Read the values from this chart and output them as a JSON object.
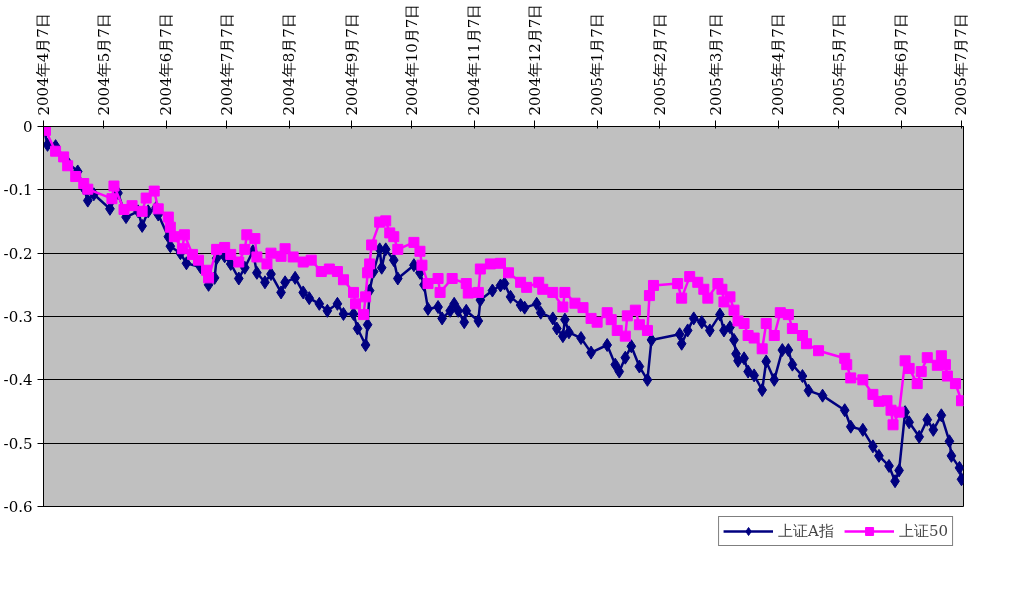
{
  "chart_data": {
    "type": "line",
    "xlim": [
      "2004-04-07",
      "2005-07-08"
    ],
    "ylim": [
      -0.6,
      0
    ],
    "xticks": [
      {
        "value": "2004-04-07",
        "label": "2004年4月7日"
      },
      {
        "value": "2004-05-07",
        "label": "2004年5月7日"
      },
      {
        "value": "2004-06-07",
        "label": "2004年6月7日"
      },
      {
        "value": "2004-07-07",
        "label": "2004年7月7日"
      },
      {
        "value": "2004-08-07",
        "label": "2004年8月7日"
      },
      {
        "value": "2004-09-07",
        "label": "2004年9月7日"
      },
      {
        "value": "2004-10-07",
        "label": "2004年10月7日"
      },
      {
        "value": "2004-11-07",
        "label": "2004年11月7日"
      },
      {
        "value": "2004-12-07",
        "label": "2004年12月7日"
      },
      {
        "value": "2005-01-07",
        "label": "2005年1月7日"
      },
      {
        "value": "2005-02-07",
        "label": "2005年2月7日"
      },
      {
        "value": "2005-03-07",
        "label": "2005年3月7日"
      },
      {
        "value": "2005-04-07",
        "label": "2005年4月7日"
      },
      {
        "value": "2005-05-07",
        "label": "2005年5月7日"
      },
      {
        "value": "2005-06-07",
        "label": "2005年6月7日"
      },
      {
        "value": "2005-07-07",
        "label": "2005年7月7日"
      }
    ],
    "yticks": [
      0,
      -0.1,
      -0.2,
      -0.3,
      -0.4,
      -0.5,
      -0.6
    ],
    "grid": "y",
    "legend": "bottom",
    "line_style": "solid",
    "series": [
      {
        "name": "上证A指",
        "color": "#000080",
        "marker": "diamond",
        "x": [
          "2004-04-07",
          "2004-04-09",
          "2004-04-13",
          "2004-04-19",
          "2004-04-24",
          "2004-04-27",
          "2004-04-29",
          "2004-05-02",
          "2004-05-10",
          "2004-05-14",
          "2004-05-18",
          "2004-05-24",
          "2004-05-26",
          "2004-05-29",
          "2004-06-02",
          "2004-06-03",
          "2004-06-08",
          "2004-06-09",
          "2004-06-14",
          "2004-06-17",
          "2004-06-24",
          "2004-06-28",
          "2004-07-01",
          "2004-07-02",
          "2004-07-06",
          "2004-07-09",
          "2004-07-13",
          "2004-07-16",
          "2004-07-20",
          "2004-07-22",
          "2004-07-26",
          "2004-07-29",
          "2004-08-03",
          "2004-08-05",
          "2004-08-10",
          "2004-08-14",
          "2004-08-17",
          "2004-08-22",
          "2004-08-26",
          "2004-08-31",
          "2004-09-03",
          "2004-09-08",
          "2004-09-10",
          "2004-09-14",
          "2004-09-15",
          "2004-09-16",
          "2004-09-18",
          "2004-09-21",
          "2004-09-22",
          "2004-09-24",
          "2004-09-28",
          "2004-09-30",
          "2004-10-08",
          "2004-10-11",
          "2004-10-13",
          "2004-10-15",
          "2004-10-20",
          "2004-10-22",
          "2004-10-26",
          "2004-10-28",
          "2004-10-30",
          "2004-11-02",
          "2004-11-03",
          "2004-11-09",
          "2004-11-10",
          "2004-11-16",
          "2004-11-20",
          "2004-11-22",
          "2004-11-25",
          "2004-11-30",
          "2004-12-02",
          "2004-12-08",
          "2004-12-10",
          "2004-12-16",
          "2004-12-18",
          "2004-12-21",
          "2004-12-22",
          "2004-12-24",
          "2004-12-30",
          "2005-01-04",
          "2005-01-12",
          "2005-01-16",
          "2005-01-18",
          "2005-01-21",
          "2005-01-24",
          "2005-01-28",
          "2005-02-01",
          "2005-02-03",
          "2005-02-17",
          "2005-02-18",
          "2005-02-21",
          "2005-02-24",
          "2005-02-28",
          "2005-03-04",
          "2005-03-09",
          "2005-03-11",
          "2005-03-14",
          "2005-03-16",
          "2005-03-17",
          "2005-03-18",
          "2005-03-21",
          "2005-03-23",
          "2005-03-26",
          "2005-03-30",
          "2005-04-01",
          "2005-04-05",
          "2005-04-09",
          "2005-04-12",
          "2005-04-14",
          "2005-04-19",
          "2005-04-22",
          "2005-04-29",
          "2005-05-10",
          "2005-05-13",
          "2005-05-19",
          "2005-05-24",
          "2005-05-27",
          "2005-06-01",
          "2005-06-04",
          "2005-06-06",
          "2005-06-09",
          "2005-06-11",
          "2005-06-16",
          "2005-06-20",
          "2005-06-23",
          "2005-06-27",
          "2005-07-01",
          "2005-07-02",
          "2005-07-06",
          "2005-07-07"
        ],
        "values": [
          0,
          -0.029,
          -0.031,
          -0.057,
          -0.071,
          -0.097,
          -0.117,
          -0.107,
          -0.13,
          -0.105,
          -0.143,
          -0.134,
          -0.157,
          -0.134,
          -0.128,
          -0.139,
          -0.174,
          -0.189,
          -0.2,
          -0.216,
          -0.222,
          -0.25,
          -0.239,
          -0.208,
          -0.205,
          -0.217,
          -0.24,
          -0.223,
          -0.197,
          -0.231,
          -0.246,
          -0.233,
          -0.262,
          -0.246,
          -0.239,
          -0.262,
          -0.271,
          -0.28,
          -0.291,
          -0.28,
          -0.296,
          -0.296,
          -0.319,
          -0.345,
          -0.313,
          -0.259,
          -0.229,
          -0.194,
          -0.223,
          -0.194,
          -0.211,
          -0.24,
          -0.219,
          -0.231,
          -0.25,
          -0.288,
          -0.285,
          -0.303,
          -0.291,
          -0.28,
          -0.291,
          -0.309,
          -0.291,
          -0.307,
          -0.274,
          -0.259,
          -0.251,
          -0.248,
          -0.269,
          -0.282,
          -0.286,
          -0.28,
          -0.294,
          -0.303,
          -0.319,
          -0.331,
          -0.305,
          -0.325,
          -0.334,
          -0.357,
          -0.345,
          -0.376,
          -0.387,
          -0.365,
          -0.347,
          -0.379,
          -0.4,
          -0.337,
          -0.328,
          -0.343,
          -0.322,
          -0.303,
          -0.309,
          -0.322,
          -0.297,
          -0.322,
          -0.317,
          -0.337,
          -0.359,
          -0.37,
          -0.366,
          -0.387,
          -0.393,
          -0.416,
          -0.371,
          -0.4,
          -0.353,
          -0.353,
          -0.376,
          -0.394,
          -0.417,
          -0.425,
          -0.448,
          -0.474,
          -0.479,
          -0.505,
          -0.52,
          -0.536,
          -0.56,
          -0.543,
          -0.451,
          -0.467,
          -0.49,
          -0.463,
          -0.479,
          -0.456,
          -0.497,
          -0.52,
          -0.539,
          -0.557
        ]
      },
      {
        "name": "上证50",
        "color": "#ff00ff",
        "marker": "square",
        "x": [
          "2004-04-07",
          "2004-04-08",
          "2004-04-13",
          "2004-04-17",
          "2004-04-19",
          "2004-04-23",
          "2004-04-27",
          "2004-04-29",
          "2004-05-11",
          "2004-05-12",
          "2004-05-17",
          "2004-05-21",
          "2004-05-26",
          "2004-05-28",
          "2004-06-01",
          "2004-06-03",
          "2004-06-08",
          "2004-06-09",
          "2004-06-11",
          "2004-06-15",
          "2004-06-16",
          "2004-06-20",
          "2004-06-23",
          "2004-06-27",
          "2004-06-28",
          "2004-07-02",
          "2004-07-06",
          "2004-07-09",
          "2004-07-13",
          "2004-07-16",
          "2004-07-17",
          "2004-07-21",
          "2004-07-22",
          "2004-07-27",
          "2004-07-29",
          "2004-08-03",
          "2004-08-05",
          "2004-08-09",
          "2004-08-14",
          "2004-08-18",
          "2004-08-23",
          "2004-08-27",
          "2004-08-31",
          "2004-09-03",
          "2004-09-08",
          "2004-09-09",
          "2004-09-13",
          "2004-09-14",
          "2004-09-15",
          "2004-09-16",
          "2004-09-17",
          "2004-09-21",
          "2004-09-24",
          "2004-09-26",
          "2004-09-28",
          "2004-09-30",
          "2004-10-08",
          "2004-10-11",
          "2004-10-12",
          "2004-10-15",
          "2004-10-20",
          "2004-10-21",
          "2004-10-27",
          "2004-11-03",
          "2004-11-04",
          "2004-11-09",
          "2004-11-10",
          "2004-11-15",
          "2004-11-20",
          "2004-11-24",
          "2004-11-30",
          "2004-12-03",
          "2004-12-09",
          "2004-12-11",
          "2004-12-16",
          "2004-12-21",
          "2004-12-22",
          "2004-12-27",
          "2004-12-31",
          "2005-01-04",
          "2005-01-07",
          "2005-01-12",
          "2005-01-14",
          "2005-01-17",
          "2005-01-21",
          "2005-01-22",
          "2005-01-26",
          "2005-01-28",
          "2005-02-01",
          "2005-02-02",
          "2005-02-04",
          "2005-02-16",
          "2005-02-18",
          "2005-02-22",
          "2005-02-26",
          "2005-03-01",
          "2005-03-03",
          "2005-03-08",
          "2005-03-10",
          "2005-03-11",
          "2005-03-14",
          "2005-03-16",
          "2005-03-18",
          "2005-03-21",
          "2005-03-23",
          "2005-03-26",
          "2005-03-30",
          "2005-04-01",
          "2005-04-05",
          "2005-04-08",
          "2005-04-12",
          "2005-04-14",
          "2005-04-19",
          "2005-04-21",
          "2005-04-27",
          "2005-05-10",
          "2005-05-11",
          "2005-05-13",
          "2005-05-19",
          "2005-05-24",
          "2005-05-27",
          "2005-05-31",
          "2005-06-02",
          "2005-06-03",
          "2005-06-06",
          "2005-06-09",
          "2005-06-11",
          "2005-06-15",
          "2005-06-17",
          "2005-06-20",
          "2005-06-25",
          "2005-06-27",
          "2005-06-29",
          "2005-06-30",
          "2005-07-04",
          "2005-07-07"
        ],
        "values": [
          0,
          -0.006,
          -0.039,
          -0.048,
          -0.062,
          -0.079,
          -0.09,
          -0.099,
          -0.114,
          -0.094,
          -0.131,
          -0.125,
          -0.134,
          -0.113,
          -0.102,
          -0.13,
          -0.143,
          -0.159,
          -0.174,
          -0.193,
          -0.171,
          -0.202,
          -0.211,
          -0.227,
          -0.239,
          -0.194,
          -0.191,
          -0.202,
          -0.214,
          -0.194,
          -0.171,
          -0.177,
          -0.206,
          -0.217,
          -0.2,
          -0.205,
          -0.193,
          -0.206,
          -0.214,
          -0.211,
          -0.229,
          -0.225,
          -0.229,
          -0.242,
          -0.262,
          -0.28,
          -0.297,
          -0.269,
          -0.231,
          -0.217,
          -0.187,
          -0.151,
          -0.149,
          -0.168,
          -0.174,
          -0.194,
          -0.183,
          -0.197,
          -0.219,
          -0.248,
          -0.24,
          -0.262,
          -0.24,
          -0.248,
          -0.263,
          -0.262,
          -0.225,
          -0.217,
          -0.216,
          -0.231,
          -0.246,
          -0.254,
          -0.246,
          -0.257,
          -0.262,
          -0.285,
          -0.262,
          -0.279,
          -0.286,
          -0.303,
          -0.309,
          -0.294,
          -0.305,
          -0.322,
          -0.331,
          -0.299,
          -0.29,
          -0.313,
          -0.322,
          -0.267,
          -0.251,
          -0.248,
          -0.271,
          -0.237,
          -0.246,
          -0.257,
          -0.271,
          -0.248,
          -0.257,
          -0.277,
          -0.269,
          -0.29,
          -0.307,
          -0.311,
          -0.33,
          -0.334,
          -0.351,
          -0.311,
          -0.33,
          -0.294,
          -0.297,
          -0.319,
          -0.33,
          -0.343,
          -0.354,
          -0.366,
          -0.376,
          -0.397,
          -0.4,
          -0.423,
          -0.434,
          -0.433,
          -0.448,
          -0.471,
          -0.451,
          -0.37,
          -0.382,
          -0.406,
          -0.387,
          -0.365,
          -0.377,
          -0.362,
          -0.376,
          -0.394,
          -0.406,
          -0.433
        ]
      }
    ]
  }
}
